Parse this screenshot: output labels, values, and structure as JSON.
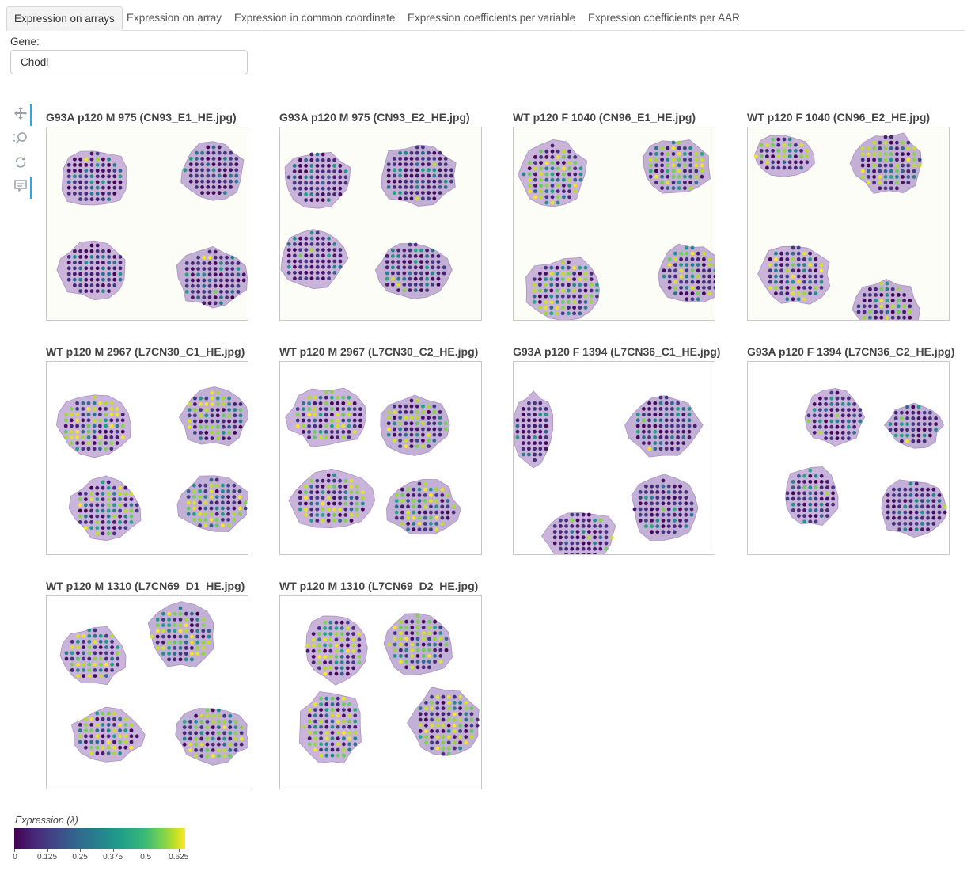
{
  "tabs": [
    {
      "label": "Expression on arrays",
      "active": true
    },
    {
      "label": "Expression on array",
      "active": false
    },
    {
      "label": "Expression in common coordinate",
      "active": false
    },
    {
      "label": "Expression coefficients per variable",
      "active": false
    },
    {
      "label": "Expression coefficients per AAR",
      "active": false
    }
  ],
  "gene": {
    "label": "Gene:",
    "value": "Chodl"
  },
  "toolbar": {
    "tools": [
      {
        "icon": "pan-icon",
        "active": true
      },
      {
        "icon": "wheel-zoom-icon",
        "active": false
      },
      {
        "icon": "reset-icon",
        "active": false
      },
      {
        "icon": "hover-icon",
        "active": true
      }
    ]
  },
  "panels": [
    {
      "title": "G93A p120 M 975 (CN93_E1_HE.jpg)"
    },
    {
      "title": "G93A p120 M 975 (CN93_E2_HE.jpg)"
    },
    {
      "title": "WT p120 F 1040 (CN96_E1_HE.jpg)"
    },
    {
      "title": "WT p120 F 1040 (CN96_E2_HE.jpg)"
    },
    {
      "title": "WT p120 M 2967 (L7CN30_C1_HE.jpg)"
    },
    {
      "title": "WT p120 M 2967 (L7CN30_C2_HE.jpg)"
    },
    {
      "title": "G93A p120 F 1394 (L7CN36_C1_HE.jpg)"
    },
    {
      "title": "G93A p120 F 1394 (L7CN36_C2_HE.jpg)"
    },
    {
      "title": "WT p120 M 1310 (L7CN69_D1_HE.jpg)"
    },
    {
      "title": "WT p120 M 1310 (L7CN69_D2_HE.jpg)"
    }
  ],
  "colorbar": {
    "title": "Expression (λ)",
    "ticks": [
      "0",
      "0.125",
      "0.25",
      "0.375",
      "0.5",
      "0.625"
    ],
    "range": [
      0,
      0.65
    ],
    "colormap": "viridis"
  }
}
